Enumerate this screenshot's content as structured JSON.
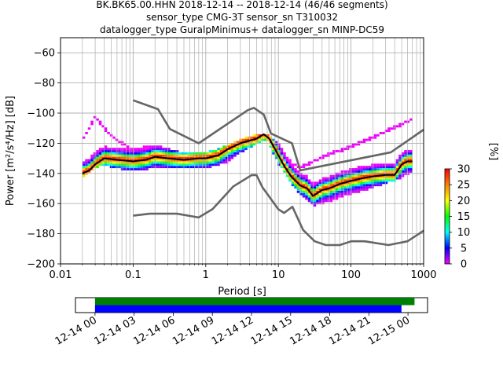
{
  "chart_data": {
    "type": "heatmap",
    "title_lines": [
      "BK.BK65.00.HHN   2018-12-14 -- 2018-12-14  (46/46 segments)",
      "sensor_type CMG-3T sensor_sn T310032",
      "datalogger_type GuralpMinimus+ datalogger_sn MINP-DC59"
    ],
    "xlabel": "Period [s]",
    "ylabel": "Power [m²/s⁴/Hz] [dB]",
    "xscale": "log",
    "xlim": [
      0.01,
      1000
    ],
    "ylim": [
      -200,
      -50
    ],
    "grid": true,
    "x_ticks": [
      {
        "value": 0.01,
        "label": "0.01"
      },
      {
        "value": 0.1,
        "label": "0.1"
      },
      {
        "value": 1,
        "label": "1"
      },
      {
        "value": 10,
        "label": "10"
      },
      {
        "value": 100,
        "label": "100"
      },
      {
        "value": 1000,
        "label": "1000"
      }
    ],
    "y_ticks": [
      {
        "value": -60,
        "label": "−60"
      },
      {
        "value": -80,
        "label": "−80"
      },
      {
        "value": -100,
        "label": "−100"
      },
      {
        "value": -120,
        "label": "−120"
      },
      {
        "value": -140,
        "label": "−140"
      },
      {
        "value": -160,
        "label": "−160"
      },
      {
        "value": -180,
        "label": "−180"
      },
      {
        "value": -200,
        "label": "−200"
      }
    ],
    "colorbar": {
      "label": "[%]",
      "range": [
        0,
        30
      ],
      "ticks": [
        {
          "value": 0,
          "label": "0"
        },
        {
          "value": 5,
          "label": "5"
        },
        {
          "value": 10,
          "label": "10"
        },
        {
          "value": 15,
          "label": "15"
        },
        {
          "value": 20,
          "label": "20"
        },
        {
          "value": 25,
          "label": "25"
        },
        {
          "value": 30,
          "label": "30"
        }
      ],
      "colors": [
        "#ff00ff",
        "#0000ff",
        "#00ffff",
        "#00ff00",
        "#ffff00",
        "#ff8000",
        "#ff0000"
      ]
    },
    "series": [
      {
        "role": "noise-model-high",
        "color": "#666666",
        "x": [
          0.1,
          0.22,
          0.32,
          0.8,
          3.8,
          4.6,
          6.3,
          7.9,
          15.4,
          20,
          354,
          1000
        ],
        "y": [
          -91.5,
          -97.4,
          -110.5,
          -120,
          -98,
          -96.5,
          -101,
          -113.5,
          -120,
          -138,
          -126,
          -111
        ]
      },
      {
        "role": "noise-model-low",
        "color": "#666666",
        "x": [
          0.1,
          0.17,
          0.4,
          0.8,
          1.24,
          2.4,
          4.3,
          5,
          6,
          10,
          12,
          15.6,
          21.9,
          31.6,
          45,
          70,
          101,
          154,
          328,
          600,
          1000
        ],
        "y": [
          -168,
          -166.7,
          -166.7,
          -169.2,
          -163.7,
          -148.6,
          -141.1,
          -141.1,
          -149,
          -163.8,
          -166.2,
          -162.1,
          -177.5,
          -185,
          -187.5,
          -187.5,
          -185,
          -185,
          -187.5,
          -185,
          -178
        ]
      },
      {
        "role": "mode",
        "color": "#000000",
        "x": [
          0.02,
          0.025,
          0.03,
          0.04,
          0.06,
          0.1,
          0.15,
          0.2,
          0.3,
          0.5,
          0.8,
          1,
          1.5,
          2,
          3,
          5,
          6.3,
          7.5,
          10,
          12,
          15,
          20,
          25,
          30,
          40,
          50,
          70,
          100,
          150,
          200,
          300,
          400,
          500,
          600,
          700
        ],
        "y": [
          -140,
          -138,
          -134,
          -130,
          -131,
          -132,
          -131,
          -129,
          -130,
          -131,
          -130,
          -130,
          -128,
          -124,
          -120,
          -117,
          -114,
          -117,
          -128,
          -135,
          -142,
          -148,
          -150,
          -155,
          -151,
          -150,
          -147,
          -145,
          -143,
          -142,
          -141,
          -141,
          -134,
          -132,
          -132
        ]
      },
      {
        "role": "histogram-upper",
        "color": "#cc00ff",
        "x": [
          0.02,
          0.025,
          0.03,
          0.04,
          0.06,
          0.1,
          0.2,
          0.3,
          0.5,
          1,
          2,
          3,
          5,
          7,
          10,
          15,
          20,
          30,
          50,
          100,
          200,
          400,
          700
        ],
        "y": [
          -118,
          -110,
          -102,
          -110,
          -118,
          -124,
          -122,
          -124,
          -127,
          -127,
          -122,
          -118,
          -115,
          -114,
          -120,
          -133,
          -136,
          -132,
          -127,
          -122,
          -116,
          -109,
          -104
        ]
      },
      {
        "role": "histogram-lower",
        "color": "#cc00ff",
        "x": [
          0.02,
          0.025,
          0.03,
          0.04,
          0.06,
          0.1,
          0.2,
          0.3,
          0.5,
          1,
          2,
          3,
          5,
          7,
          10,
          15,
          20,
          30,
          50,
          100,
          200,
          400,
          700
        ],
        "y": [
          -142,
          -139,
          -136,
          -134,
          -136,
          -138,
          -136,
          -136,
          -136,
          -136,
          -132,
          -126,
          -120,
          -117,
          -133,
          -146,
          -154,
          -161,
          -158,
          -153,
          -149,
          -144,
          -139
        ]
      }
    ],
    "time_axis": {
      "labels": [
        "12-14 00",
        "12-14 03",
        "12-14 06",
        "12-14 09",
        "12-14 12",
        "12-14 15",
        "12-14 18",
        "12-14 21",
        "12-15 00"
      ],
      "range_hours": [
        -1.5,
        25.5
      ],
      "bars": [
        {
          "role": "data-available",
          "color": "#008000",
          "start_hours": 0,
          "end_hours": 24.5
        },
        {
          "role": "psd-used",
          "color": "#0000ff",
          "start_hours": 0,
          "end_hours": 23.5
        }
      ]
    }
  }
}
